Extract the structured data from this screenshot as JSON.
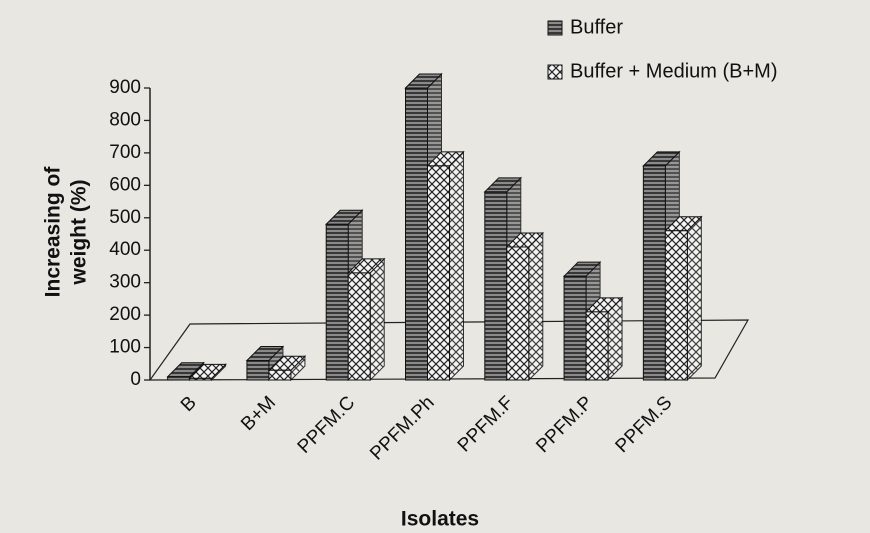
{
  "chart_data": {
    "type": "bar3d",
    "y_label": [
      "Increasing of",
      "weight (%)"
    ],
    "x_label": "Isolates",
    "categories": [
      "B",
      "B+M",
      "PPFM.C",
      "PPFM.Ph",
      "PPFM.F",
      "PPFM.P",
      "PPFM.S"
    ],
    "series": [
      {
        "name": "Buffer",
        "color": "#555555",
        "values": [
          10,
          60,
          480,
          900,
          580,
          320,
          660
        ]
      },
      {
        "name": "Buffer + Medium (B+M)",
        "color": "#ffffff",
        "values": [
          5,
          30,
          330,
          660,
          410,
          210,
          460
        ]
      }
    ],
    "ylim": [
      0,
      900
    ],
    "yticks": [
      0,
      100,
      200,
      300,
      400,
      500,
      600,
      700,
      800,
      900
    ],
    "legend": "top-right"
  }
}
